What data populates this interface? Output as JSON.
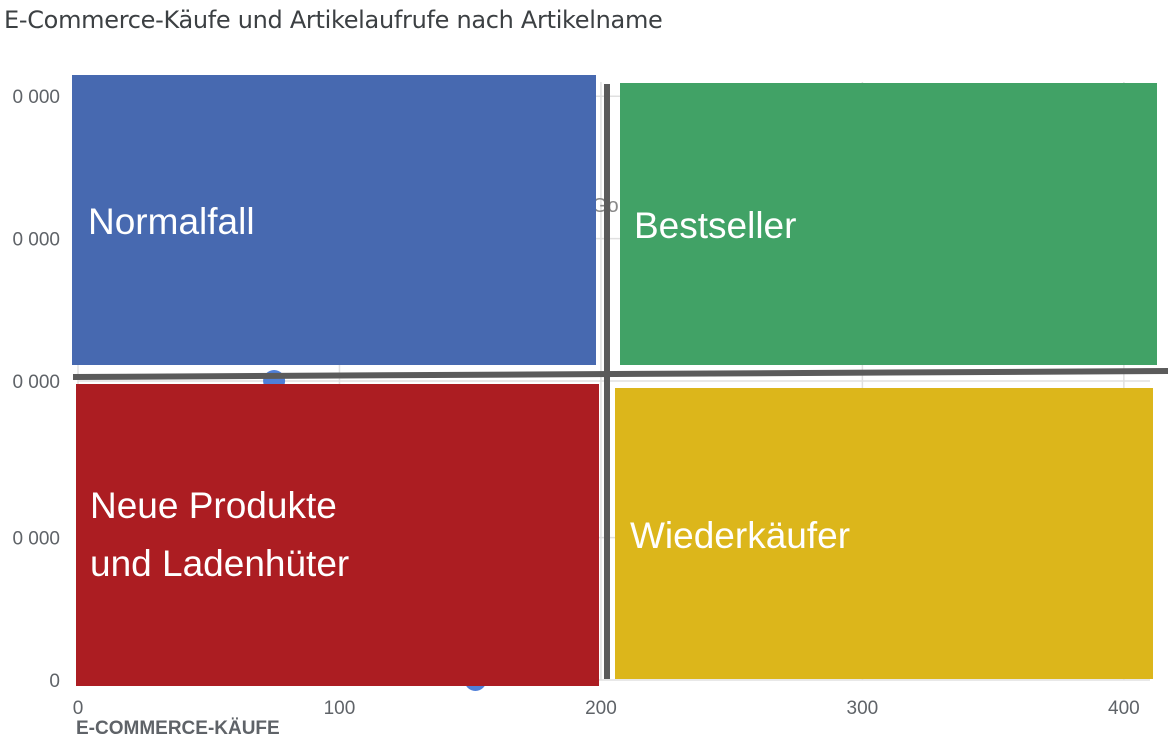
{
  "title": "E-Commerce-Käufe und Artikelaufrufe nach Artikelname",
  "chart_data": {
    "type": "scatter",
    "title": "E-Commerce-Käufe und Artikelaufrufe nach Artikelname",
    "xlabel": "E-COMMERCE-KÄUFE",
    "ylabel": "",
    "xlim": [
      0,
      410
    ],
    "ylim": [
      0,
      42000
    ],
    "x_ticks": [
      {
        "value": 0,
        "label": "0"
      },
      {
        "value": 100,
        "label": "100"
      },
      {
        "value": 200,
        "label": "200"
      },
      {
        "value": 300,
        "label": "300"
      },
      {
        "value": 400,
        "label": "400"
      }
    ],
    "y_ticks": [
      {
        "value": 0,
        "label": "0"
      },
      {
        "value": 10000,
        "label": "0 000"
      },
      {
        "value": 21000,
        "label": "0 000"
      },
      {
        "value": 31000,
        "label": "0 000"
      },
      {
        "value": 41000,
        "label": "0 000"
      }
    ],
    "grid": true,
    "points": [
      {
        "x": 75,
        "y": 21000
      },
      {
        "x": 152,
        "y": 0
      }
    ],
    "partial_label": "Go",
    "divider": {
      "x": 200,
      "y": 21500
    },
    "quadrants": [
      {
        "name": "Normalfall",
        "lines": [
          "Normalfall"
        ],
        "color": "#4769b0"
      },
      {
        "name": "Bestseller",
        "lines": [
          "Bestseller"
        ],
        "color": "#41a266"
      },
      {
        "name": "Neue Produkte und Ladenhüter",
        "lines": [
          "Neue Produkte",
          "und Ladenhüter"
        ],
        "color": "#ac1d22"
      },
      {
        "name": "Wiederkäufer",
        "lines": [
          "Wiederkäufer"
        ],
        "color": "#dcb61b"
      }
    ],
    "colors": {
      "point": "#4f7fd8",
      "grid": "#e0e0e0",
      "divider": "#5b5b5b",
      "tick": "#5f6368"
    }
  }
}
